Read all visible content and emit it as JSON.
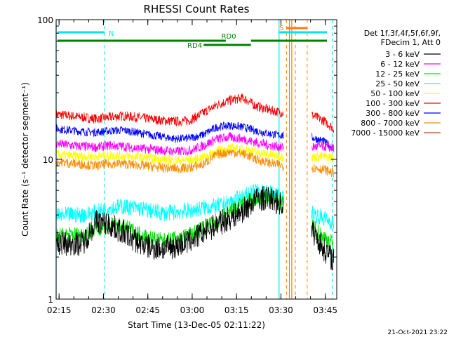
{
  "chart_data": {
    "type": "line",
    "title": "RHESSI Count Rates",
    "xlabel": "Start Time (13-Dec-05 02:11:22)",
    "ylabel": "Count Rate (s⁻¹ detector segment⁻¹)",
    "x_ticks": [
      "02:15",
      "02:30",
      "02:45",
      "03:00",
      "03:15",
      "03:30",
      "03:45"
    ],
    "y_ticks": [
      "1",
      "10",
      "100"
    ],
    "y_scale": "log",
    "ylim": [
      1,
      100
    ],
    "xlim_minutes": [
      2.64,
      97.5
    ],
    "grid": false,
    "legend_position": "right",
    "legend_header": [
      "Det 1f,3f,4f,5f,6f,9f,",
      "FDecim 1, Att 0"
    ],
    "timestamp": "21-Oct-2021 23:22",
    "annotations": {
      "N_label": "N",
      "S_label": "S",
      "RD0_label": "RD0",
      "RD4_label": "RD4"
    },
    "series": [
      {
        "name": "3 - 6 keV",
        "color": "#000000",
        "values": [
          2.5,
          2.5,
          2.5,
          3.6,
          3.4,
          3.0,
          2.6,
          2.35,
          2.3,
          2.4,
          2.6,
          3.0,
          3.4,
          3.8,
          4.3,
          5.2,
          5.3,
          4.7,
          3.9,
          3.3,
          2.3,
          1.8
        ]
      },
      {
        "name": "6 - 12 keV",
        "color": "#ff00ff",
        "values": [
          13.0,
          12.6,
          12.4,
          12.2,
          12.6,
          12.4,
          12.0,
          11.8,
          11.6,
          11.4,
          11.6,
          12.5,
          14.0,
          14.4,
          14.0,
          13.2,
          12.6,
          12.2,
          11.8,
          12.2,
          12.4,
          12.0
        ]
      },
      {
        "name": "12 - 25 keV",
        "color": "#00e000",
        "values": [
          2.8,
          2.9,
          2.9,
          3.2,
          3.4,
          3.3,
          3.0,
          2.75,
          2.6,
          2.7,
          2.9,
          3.2,
          3.6,
          4.2,
          4.8,
          5.3,
          5.4,
          4.8,
          4.0,
          3.4,
          2.8,
          2.4
        ]
      },
      {
        "name": "25 - 50 keV",
        "color": "#00ffff",
        "values": [
          3.9,
          4.0,
          4.0,
          4.2,
          4.5,
          4.6,
          4.5,
          4.3,
          4.1,
          4.2,
          4.3,
          4.5,
          4.6,
          4.9,
          5.4,
          5.9,
          5.8,
          5.2,
          4.6,
          4.2,
          3.8,
          3.4
        ]
      },
      {
        "name": "50 - 100 keV",
        "color": "#ffff00",
        "values": [
          10.8,
          10.6,
          10.5,
          10.5,
          10.7,
          10.6,
          10.4,
          10.2,
          10.0,
          9.8,
          9.9,
          10.3,
          11.5,
          12.0,
          11.8,
          11.3,
          10.8,
          10.5,
          10.2,
          10.3,
          10.5,
          10.2
        ]
      },
      {
        "name": "100 - 300 keV",
        "color": "#ff0000",
        "values": [
          21.0,
          20.5,
          20.0,
          19.5,
          20.0,
          20.5,
          20.0,
          19.5,
          19.0,
          18.7,
          19.0,
          21.5,
          24.5,
          26.5,
          27.5,
          24.0,
          22.5,
          21.5,
          21.0,
          21.0,
          19.0,
          16.0
        ]
      },
      {
        "name": "300 - 800 keV",
        "color": "#0000ff",
        "values": [
          16.5,
          16.2,
          15.8,
          15.6,
          16.0,
          16.2,
          15.6,
          15.0,
          14.5,
          14.0,
          14.2,
          15.0,
          17.0,
          17.5,
          17.0,
          16.0,
          15.2,
          14.8,
          14.5,
          14.5,
          13.5,
          11.5
        ]
      },
      {
        "name": "800 - 7000 keV",
        "color": "#ff8c00",
        "values": [
          9.6,
          9.4,
          9.2,
          9.0,
          9.3,
          9.3,
          9.1,
          8.9,
          8.7,
          8.6,
          8.7,
          9.2,
          10.8,
          11.3,
          11.0,
          10.0,
          9.4,
          9.0,
          8.8,
          8.8,
          8.5,
          7.8
        ]
      },
      {
        "name": "7000 - 15000 keV",
        "color": "#a0522d",
        "values": []
      }
    ]
  }
}
